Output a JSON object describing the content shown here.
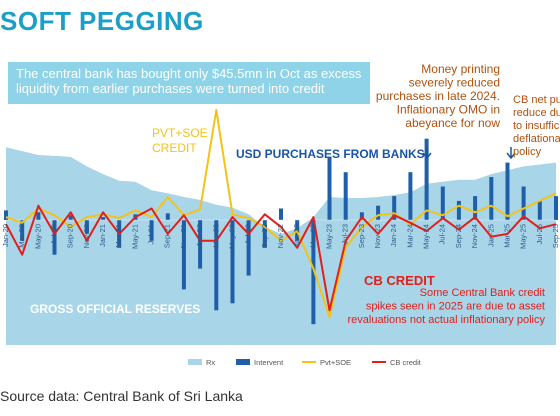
{
  "title": "SOFT PEGGING",
  "subtitle": "The central bank has bought only $45.5mn in Oct as excess liquidity from earlier purchases were turned into credit",
  "annotations": {
    "pvt_soe": "PVT+SOE CREDIT",
    "usd_purchases": "USD PURCHASES FROM BANKS",
    "money_printing": "Money printing severely reduced purchases in late 2024. Inflationary OMO in abeyance for now",
    "cb_net": "CB net pur... reduce due... to insuffici... deflationar... policy",
    "reserves": "GROSS OFFICIAL RESERVES",
    "cb_credit": "CB CREDIT",
    "cb_spikes": "Some Central Bank credit spikes seen in 2025 are due to asset revaluations not actual inflationary policy"
  },
  "source": "Source data: Central Bank of Sri Lanka",
  "colors": {
    "title": "#1aa0c8",
    "banner": "#8fd3e8",
    "reserves": "#a9d5e8",
    "intervent": "#1f5fa8",
    "pvt_soe": "#f2c318",
    "cb_credit": "#e0201c",
    "annotation_orange": "#b0520c",
    "annotation_blue": "#1a55a5",
    "annotation_red": "#e0201c"
  },
  "chart_data": {
    "type": "bar",
    "x": [
      "Jan-20",
      "Mar-20",
      "May-20",
      "Jul-20",
      "Sep-20",
      "Nov-20",
      "Jan-21",
      "Mar-21",
      "May-21",
      "Jul-21",
      "Sep-21",
      "Nov-21",
      "Jan-22",
      "Mar-22",
      "May-22",
      "Jul-22",
      "Sep-22",
      "Nov-22",
      "Jan-23",
      "Mar-23",
      "May-23",
      "Jul-23",
      "Sep-23",
      "Nov-23",
      "Jan-24",
      "Mar-24",
      "May-24",
      "Jul-24",
      "Sep-24",
      "Nov-24",
      "Jan-25",
      "Mar-25",
      "May-25",
      "Jul-25",
      "Sep-25"
    ],
    "x_tick_labels": [
      "Jan-20",
      "Mar-20",
      "May-20",
      "Jul-20",
      "Sep-20",
      "Nov-20",
      "Jan-21",
      "Mar-21",
      "May-21",
      "Jul-21",
      "Sep-21",
      "Nov-21",
      "Jan-22",
      "Mar-22",
      "May-22",
      "Jul-22",
      "Sep-22",
      "Nov-22",
      "Jan-23",
      "Mar-23",
      "May-23",
      "Jul-23",
      "Sep-23",
      "Nov-23",
      "Jan-24",
      "Mar-24",
      "May-24",
      "Jul-24",
      "Sep-24",
      "Nov-24",
      "Jan-25",
      "Mar-25",
      "May-25",
      "Jul-25",
      "Sep-25"
    ],
    "series": [
      {
        "name": "Rx",
        "type": "area",
        "values": [
          7.6,
          7.2,
          6.8,
          6.7,
          6.6,
          5.6,
          4.8,
          4.1,
          4.0,
          3.1,
          2.8,
          2.4,
          2.1,
          1.6,
          1.3,
          0.6,
          -0.5,
          -1.0,
          -0.6,
          0.3,
          2.4,
          2.3,
          2.3,
          2.4,
          2.6,
          2.9,
          3.8,
          4.0,
          4.2,
          4.2,
          4.8,
          5.2,
          5.6,
          5.8,
          6.0
        ]
      },
      {
        "name": "Intervent",
        "type": "bar",
        "values": [
          1.0,
          -1.5,
          0.8,
          -2.5,
          0.5,
          -1.0,
          0.3,
          -2.0,
          0.6,
          -1.5,
          0.7,
          -5.0,
          -3.5,
          -6.5,
          -6.0,
          -4.0,
          -2.0,
          1.2,
          -1.5,
          -7.5,
          6.5,
          5.0,
          0.8,
          1.5,
          2.5,
          5.0,
          8.5,
          3.5,
          2.0,
          2.5,
          4.5,
          6.0,
          3.5,
          2.0,
          2.5
        ]
      },
      {
        "name": "Pvt+SOE",
        "type": "line",
        "values": [
          0.3,
          -0.2,
          1.2,
          0.5,
          -0.5,
          0.3,
          0.6,
          0.2,
          1.0,
          0.3,
          2.4,
          0.5,
          1.1,
          11.5,
          0.6,
          0.2,
          -0.5,
          -1.5,
          -0.8,
          -3.5,
          -7.0,
          -2.0,
          -0.5,
          0.5,
          0.7,
          -0.3,
          1.0,
          0.5,
          1.5,
          0.8,
          1.5,
          0.4,
          1.2,
          2.0,
          2.8
        ]
      },
      {
        "name": "CB credit",
        "type": "line",
        "values": [
          -0.3,
          -2.5,
          1.5,
          -1.0,
          0.8,
          -1.5,
          0.8,
          -1.0,
          0.3,
          1.2,
          -1.0,
          0.5,
          -1.5,
          -1.5,
          0.3,
          -1.0,
          0.6,
          -0.5,
          -2.0,
          0.3,
          -6.5,
          -1.5,
          0.3,
          -1.0,
          0.5,
          -0.2,
          -0.8,
          0.2,
          -0.7,
          0.3,
          -1.2,
          -1.0,
          0.4,
          -0.6,
          -0.3
        ]
      }
    ]
  }
}
